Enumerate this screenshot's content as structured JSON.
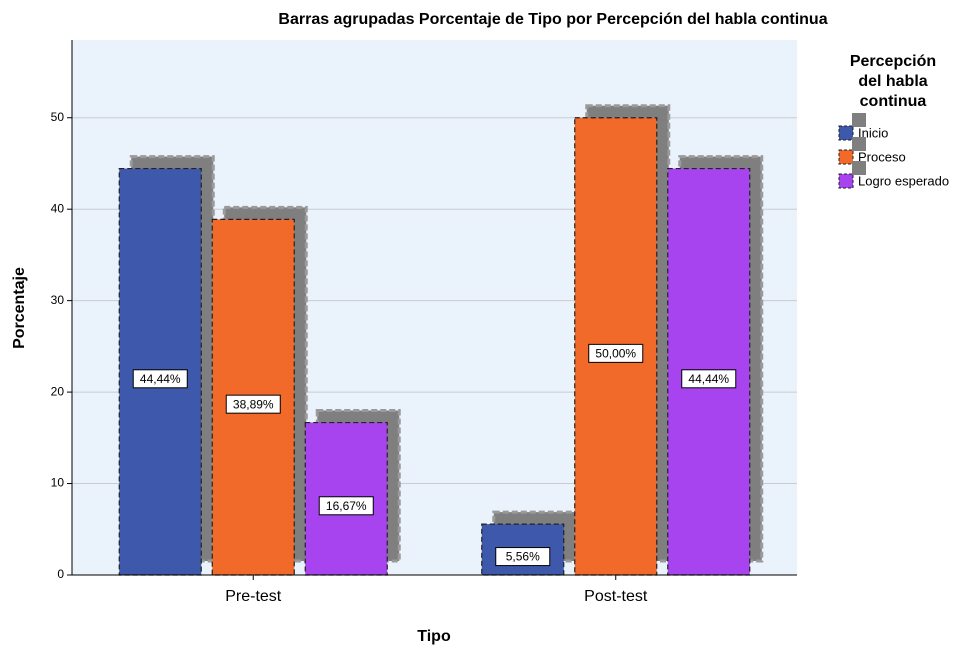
{
  "chart_data": {
    "type": "bar",
    "title": "Barras agrupadas Porcentaje de Tipo por Percepción del habla continua",
    "x_label": "Tipo",
    "y_label": "Porcentaje",
    "categories": [
      "Pre-test",
      "Post-test"
    ],
    "legend_title": "Percepción del habla continua",
    "series": [
      {
        "name": "Inicio",
        "color": "#3e58ac",
        "values": [
          44.44,
          5.56
        ],
        "value_labels": [
          "44,44%",
          "5,56%"
        ]
      },
      {
        "name": "Proceso",
        "color": "#f26a2a",
        "values": [
          38.89,
          50.0
        ],
        "value_labels": [
          "38,89%",
          "50,00%"
        ]
      },
      {
        "name": "Logro esperado",
        "color": "#a743ef",
        "values": [
          16.67,
          44.44
        ],
        "value_labels": [
          "16,67%",
          "44,44%"
        ]
      }
    ],
    "ylim": [
      0,
      58.5
    ],
    "yticks": [
      0,
      10,
      20,
      30,
      40,
      50
    ],
    "grid": true,
    "legend": "right"
  }
}
